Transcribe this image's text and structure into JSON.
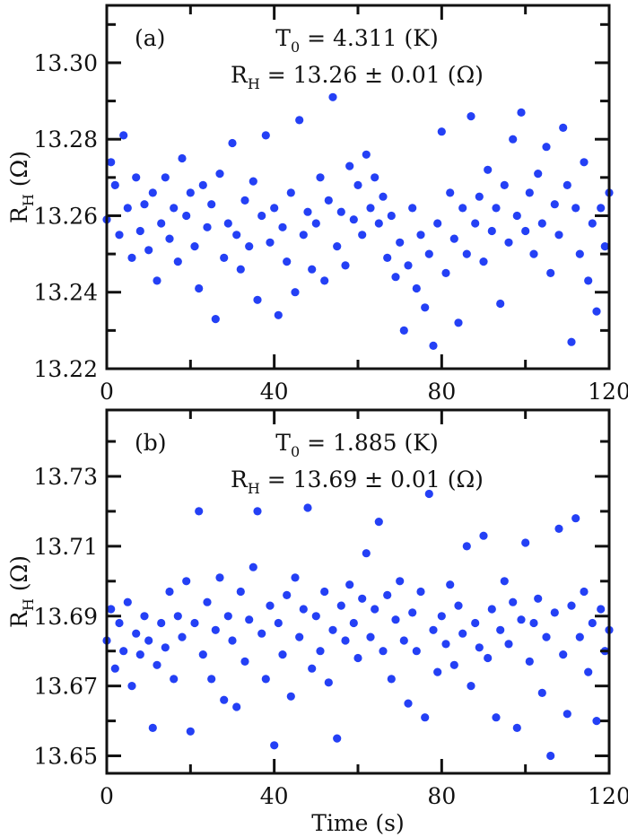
{
  "colors": {
    "points": "#2440f5",
    "axes": "#111111"
  },
  "chart_data": [
    {
      "type": "scatter",
      "panel_label": "(a)",
      "annotation": {
        "t0_main": "T",
        "t0_sub": "0",
        "t0_rest": " = 4.311 (K)",
        "rh_main": "R",
        "rh_sub": "H",
        "rh_rest": " = 13.26 ± 0.01 (Ω)"
      },
      "ylabel": {
        "main": "R",
        "sub": "H",
        "rest": " (Ω)"
      },
      "xlabel": "",
      "xlim": [
        0,
        120
      ],
      "ylim": [
        13.22,
        13.315
      ],
      "xticks": [
        0,
        40,
        80,
        120
      ],
      "xminor": [
        20,
        60,
        100
      ],
      "yticks": [
        "13.22",
        "13.24",
        "13.26",
        "13.28",
        "13.30"
      ],
      "yminor": [
        13.23,
        13.25,
        13.27,
        13.29,
        13.31
      ],
      "grid": false,
      "x": [
        0,
        1,
        2,
        3,
        4,
        5,
        6,
        7,
        8,
        9,
        10,
        11,
        12,
        13,
        14,
        15,
        16,
        17,
        18,
        19,
        20,
        21,
        22,
        23,
        24,
        25,
        26,
        27,
        28,
        29,
        30,
        31,
        32,
        33,
        34,
        35,
        36,
        37,
        38,
        39,
        40,
        41,
        42,
        43,
        44,
        45,
        46,
        47,
        48,
        49,
        50,
        51,
        52,
        53,
        54,
        55,
        56,
        57,
        58,
        59,
        60,
        61,
        62,
        63,
        64,
        65,
        66,
        67,
        68,
        69,
        70,
        71,
        72,
        73,
        74,
        75,
        76,
        77,
        78,
        79,
        80,
        81,
        82,
        83,
        84,
        85,
        86,
        87,
        88,
        89,
        90,
        91,
        92,
        93,
        94,
        95,
        96,
        97,
        98,
        99,
        100,
        101,
        102,
        103,
        104,
        105,
        106,
        107,
        108,
        109,
        110,
        111,
        112,
        113,
        114,
        115,
        116,
        117,
        118,
        119,
        120
      ],
      "y": [
        13.259,
        13.274,
        13.268,
        13.255,
        13.281,
        13.262,
        13.249,
        13.27,
        13.256,
        13.263,
        13.251,
        13.266,
        13.243,
        13.258,
        13.27,
        13.254,
        13.262,
        13.248,
        13.275,
        13.26,
        13.266,
        13.252,
        13.241,
        13.268,
        13.257,
        13.263,
        13.233,
        13.271,
        13.249,
        13.258,
        13.279,
        13.255,
        13.246,
        13.264,
        13.252,
        13.269,
        13.238,
        13.26,
        13.281,
        13.253,
        13.262,
        13.234,
        13.257,
        13.248,
        13.266,
        13.24,
        13.285,
        13.255,
        13.261,
        13.246,
        13.258,
        13.27,
        13.243,
        13.264,
        13.291,
        13.252,
        13.261,
        13.247,
        13.273,
        13.259,
        13.268,
        13.255,
        13.276,
        13.262,
        13.27,
        13.258,
        13.265,
        13.249,
        13.26,
        13.244,
        13.253,
        13.23,
        13.247,
        13.262,
        13.241,
        13.255,
        13.236,
        13.25,
        13.226,
        13.258,
        13.282,
        13.245,
        13.266,
        13.254,
        13.232,
        13.262,
        13.25,
        13.286,
        13.258,
        13.265,
        13.248,
        13.272,
        13.256,
        13.262,
        13.237,
        13.268,
        13.253,
        13.28,
        13.26,
        13.287,
        13.256,
        13.266,
        13.25,
        13.271,
        13.258,
        13.278,
        13.245,
        13.263,
        13.255,
        13.283,
        13.268,
        13.227,
        13.262,
        13.25,
        13.274,
        13.243,
        13.258,
        13.235,
        13.262,
        13.252,
        13.266
      ]
    },
    {
      "type": "scatter",
      "panel_label": "(b)",
      "annotation": {
        "t0_main": "T",
        "t0_sub": "0",
        "t0_rest": " = 1.885 (K)",
        "rh_main": "R",
        "rh_sub": "H",
        "rh_rest": " = 13.69 ± 0.01 (Ω)"
      },
      "ylabel": {
        "main": "R",
        "sub": "H",
        "rest": " (Ω)"
      },
      "xlabel": "Time (s)",
      "xlim": [
        0,
        120
      ],
      "ylim": [
        13.645,
        13.749
      ],
      "xticks": [
        0,
        40,
        80,
        120
      ],
      "xminor": [
        20,
        60,
        100
      ],
      "yticks": [
        "13.65",
        "13.67",
        "13.69",
        "13.71",
        "13.73"
      ],
      "yminor": [
        13.66,
        13.68,
        13.7,
        13.72,
        13.74
      ],
      "grid": false,
      "x": [
        0,
        1,
        2,
        3,
        4,
        5,
        6,
        7,
        8,
        9,
        10,
        11,
        12,
        13,
        14,
        15,
        16,
        17,
        18,
        19,
        20,
        21,
        22,
        23,
        24,
        25,
        26,
        27,
        28,
        29,
        30,
        31,
        32,
        33,
        34,
        35,
        36,
        37,
        38,
        39,
        40,
        41,
        42,
        43,
        44,
        45,
        46,
        47,
        48,
        49,
        50,
        51,
        52,
        53,
        54,
        55,
        56,
        57,
        58,
        59,
        60,
        61,
        62,
        63,
        64,
        65,
        66,
        67,
        68,
        69,
        70,
        71,
        72,
        73,
        74,
        75,
        76,
        77,
        78,
        79,
        80,
        81,
        82,
        83,
        84,
        85,
        86,
        87,
        88,
        89,
        90,
        91,
        92,
        93,
        94,
        95,
        96,
        97,
        98,
        99,
        100,
        101,
        102,
        103,
        104,
        105,
        106,
        107,
        108,
        109,
        110,
        111,
        112,
        113,
        114,
        115,
        116,
        117,
        118,
        119,
        120
      ],
      "y": [
        13.683,
        13.692,
        13.675,
        13.688,
        13.68,
        13.694,
        13.67,
        13.685,
        13.679,
        13.69,
        13.683,
        13.658,
        13.676,
        13.688,
        13.681,
        13.697,
        13.672,
        13.69,
        13.684,
        13.7,
        13.657,
        13.688,
        13.72,
        13.679,
        13.694,
        13.672,
        13.686,
        13.701,
        13.666,
        13.69,
        13.683,
        13.664,
        13.697,
        13.677,
        13.689,
        13.704,
        13.72,
        13.685,
        13.672,
        13.693,
        13.653,
        13.688,
        13.679,
        13.696,
        13.667,
        13.701,
        13.684,
        13.692,
        13.721,
        13.675,
        13.69,
        13.68,
        13.697,
        13.671,
        13.686,
        13.655,
        13.693,
        13.683,
        13.699,
        13.688,
        13.678,
        13.695,
        13.708,
        13.684,
        13.692,
        13.717,
        13.68,
        13.696,
        13.672,
        13.689,
        13.7,
        13.683,
        13.665,
        13.691,
        13.68,
        13.697,
        13.661,
        13.725,
        13.686,
        13.674,
        13.69,
        13.682,
        13.699,
        13.676,
        13.693,
        13.685,
        13.71,
        13.67,
        13.688,
        13.681,
        13.713,
        13.678,
        13.692,
        13.661,
        13.686,
        13.7,
        13.682,
        13.694,
        13.658,
        13.689,
        13.711,
        13.677,
        13.688,
        13.695,
        13.668,
        13.684,
        13.65,
        13.691,
        13.715,
        13.679,
        13.662,
        13.693,
        13.718,
        13.684,
        13.697,
        13.674,
        13.688,
        13.66,
        13.692,
        13.68,
        13.686
      ]
    }
  ]
}
